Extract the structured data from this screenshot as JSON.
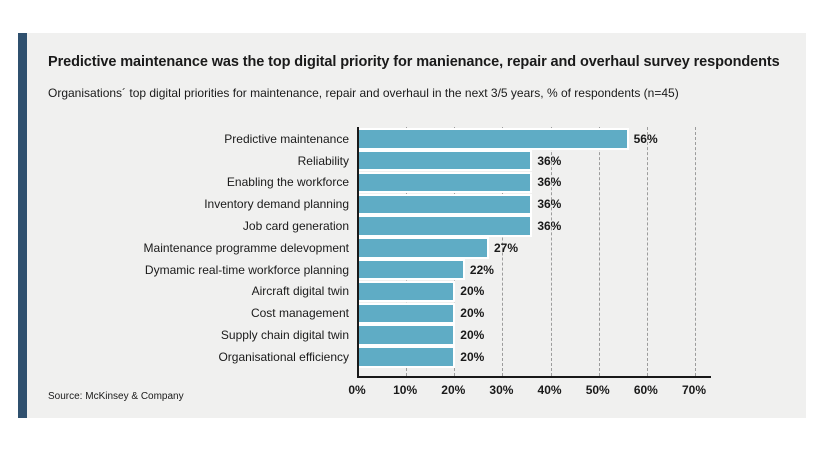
{
  "header": {
    "title": "Predictive maintenance was the top digital priority for manienance, repair and overhaul survey respondents",
    "subtitle": "Organisations´ top digital priorities for maintenance, repair and overhaul in the next 3/5 years, % of respondents (n=45)"
  },
  "footer": {
    "source": "Source: McKinsey & Company"
  },
  "colors": {
    "bar": "#5facc5",
    "accent_stripe": "#2f506e",
    "card_background": "#f0f0ef",
    "axis": "#191919",
    "gridline": "#9c9c9c"
  },
  "chart_data": {
    "type": "bar",
    "orientation": "horizontal",
    "title": "Predictive maintenance was the top digital priority for manienance, repair and overhaul survey respondents",
    "subtitle": "Organisations´ top digital priorities for maintenance, repair and overhaul in the next 3/5 years, % of respondents (n=45)",
    "categories": [
      "Predictive maintenance",
      "Reliability",
      "Enabling the workforce",
      "Inventory demand planning",
      "Job card generation",
      "Maintenance programme delevopment",
      "Dymamic real-time workforce planning",
      "Aircraft digital twin",
      "Cost management",
      "Supply chain digital twin",
      "Organisational efficiency"
    ],
    "values": [
      56,
      36,
      36,
      36,
      36,
      27,
      22,
      20,
      20,
      20,
      20
    ],
    "value_suffix": "%",
    "data_labels": true,
    "xlim": [
      0,
      70
    ],
    "xtick_step": 10,
    "xticks": [
      "0%",
      "10%",
      "20%",
      "30%",
      "40%",
      "50%",
      "60%",
      "70%"
    ],
    "grid": "vertical-dashed",
    "legend": "none"
  }
}
